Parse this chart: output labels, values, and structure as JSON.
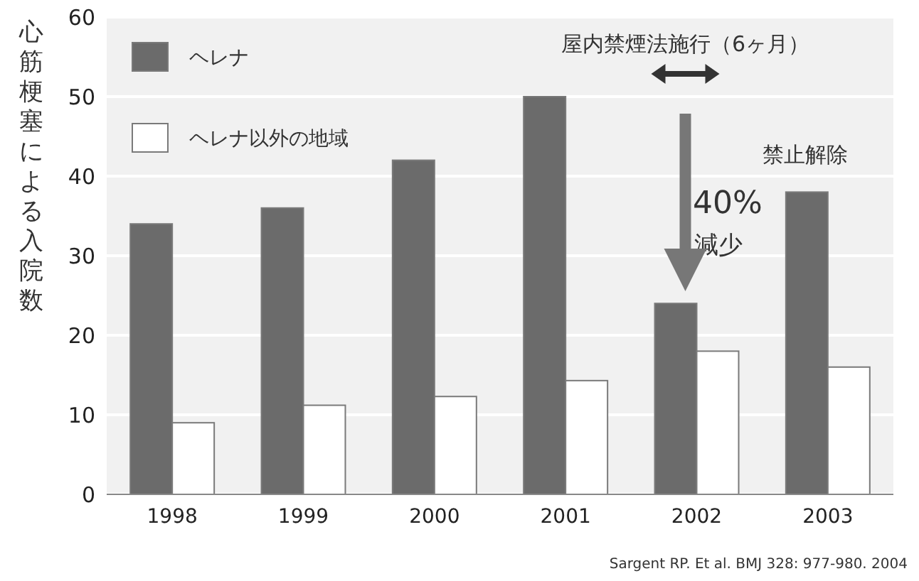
{
  "chart_data": {
    "type": "bar",
    "ylabel": "心筋梗塞による入院数",
    "categories": [
      "1998",
      "1999",
      "2000",
      "2001",
      "2002",
      "2003"
    ],
    "series": [
      {
        "name": "ヘレナ",
        "color": "#6b6b6b",
        "values": [
          34,
          36,
          42,
          50,
          24,
          38
        ]
      },
      {
        "name": "ヘレナ以外の地域",
        "color": "#ffffff",
        "values": [
          9,
          11.2,
          12.3,
          14.3,
          18,
          16
        ]
      }
    ],
    "ylim": [
      0,
      60
    ],
    "yticks": [
      0,
      10,
      20,
      30,
      40,
      50,
      60
    ],
    "grid": "y",
    "legend": "top left",
    "annotations": [
      "屋内禁煙法施行（6ヶ月）",
      "禁止解除",
      "40%",
      "減少",
      "Sargent RP. Et al. BMJ 328: 977-980. 2004"
    ]
  }
}
